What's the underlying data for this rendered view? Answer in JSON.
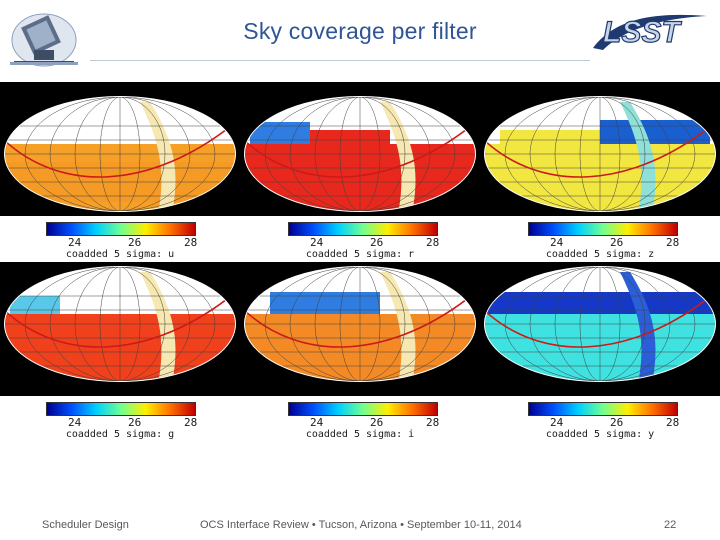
{
  "slide": {
    "title": "Sky coverage per filter",
    "footer_left": "Scheduler Design",
    "footer_center": "OCS Interface Review • Tucson, Arizona • September 10-11, 2014",
    "page_number": "22"
  },
  "logos": {
    "left": "telescope-logo",
    "right_text": "LSST"
  },
  "colorbar": {
    "tick_labels": [
      "24",
      "26",
      "28"
    ]
  },
  "maps": [
    {
      "caption": "coadded 5 sigma: u",
      "dominant_color": "#f7a028"
    },
    {
      "caption": "coadded 5 sigma: r",
      "dominant_color": "#e8281c"
    },
    {
      "caption": "coadded 5 sigma: z",
      "dominant_color": "#f2e640"
    },
    {
      "caption": "coadded 5 sigma: g",
      "dominant_color": "#f0401c"
    },
    {
      "caption": "coadded 5 sigma: i",
      "dominant_color": "#f38a26"
    },
    {
      "caption": "coadded 5 sigma: y",
      "dominant_color": "#3fe2e0"
    }
  ],
  "colors": {
    "title": "#2f5597",
    "panel_background": "#000000",
    "galactic_plane": "#cc1a1a"
  }
}
